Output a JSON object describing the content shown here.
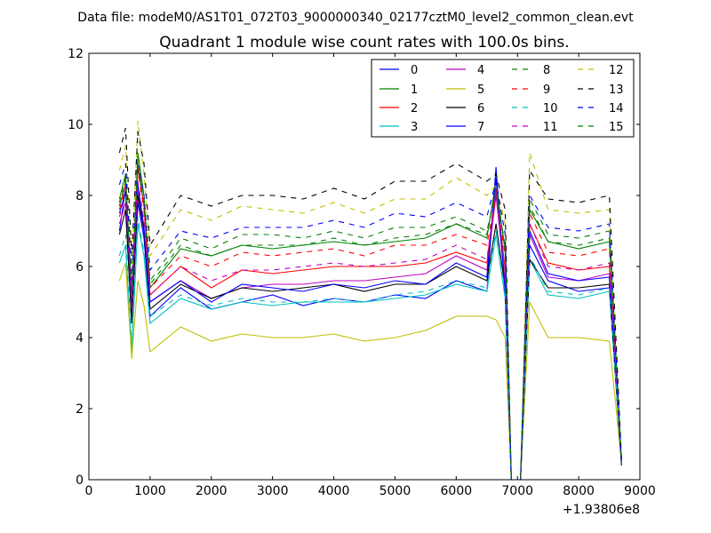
{
  "figure": {
    "suptitle": "Data file: modeM0/AS1T01_072T03_9000000340_02177cztM0_level2_common_clean.evt",
    "title": "Quadrant 1 module wise count rates with 100.0s bins.",
    "x_offset_label": "+1.93806e8"
  },
  "chart_data": {
    "type": "line",
    "title": "Quadrant 1 module wise count rates with 100.0s bins.",
    "xlabel": "",
    "ylabel": "",
    "x_offset": "+1.93806e8",
    "xlim": [
      0,
      9000
    ],
    "ylim": [
      0,
      12
    ],
    "xticks": [
      "0",
      "1000",
      "2000",
      "3000",
      "4000",
      "5000",
      "6000",
      "7000",
      "8000",
      "9000"
    ],
    "yticks": [
      "0",
      "2",
      "4",
      "6",
      "8",
      "10",
      "12"
    ],
    "grid": false,
    "legend_position": "top-right",
    "x": [
      500,
      600,
      700,
      800,
      900,
      1000,
      1500,
      2000,
      2500,
      3000,
      3500,
      4000,
      4500,
      5000,
      5500,
      6000,
      6500,
      6650,
      6800,
      6900,
      7050,
      7200,
      7500,
      8000,
      8500,
      8700
    ],
    "series": [
      {
        "name": "0",
        "color": "#0000ff",
        "style": "solid",
        "values": [
          7.0,
          8.2,
          4.6,
          7.8,
          6.8,
          4.6,
          5.4,
          4.8,
          5.0,
          5.2,
          4.9,
          5.1,
          5.0,
          5.2,
          5.1,
          5.6,
          5.3,
          8.8,
          5.2,
          0.0,
          0.0,
          6.6,
          5.6,
          5.3,
          5.4,
          0.5
        ]
      },
      {
        "name": "1",
        "color": "#008000",
        "style": "solid",
        "values": [
          7.9,
          8.6,
          5.2,
          9.2,
          8.0,
          5.4,
          6.5,
          6.3,
          6.6,
          6.5,
          6.6,
          6.7,
          6.6,
          6.7,
          6.8,
          7.2,
          6.8,
          8.4,
          6.4,
          0.0,
          0.0,
          7.6,
          6.7,
          6.5,
          6.7,
          0.5
        ]
      },
      {
        "name": "2",
        "color": "#ff0000",
        "style": "solid",
        "values": [
          7.7,
          8.3,
          5.0,
          8.8,
          7.7,
          5.2,
          6.0,
          5.4,
          5.9,
          5.8,
          5.9,
          6.0,
          6.0,
          6.0,
          6.1,
          6.4,
          6.1,
          8.2,
          5.9,
          0.0,
          0.0,
          7.2,
          6.1,
          5.9,
          6.0,
          0.5
        ]
      },
      {
        "name": "3",
        "color": "#00bfbf",
        "style": "solid",
        "values": [
          6.1,
          6.6,
          3.6,
          7.2,
          6.3,
          4.4,
          5.1,
          4.8,
          5.0,
          4.9,
          5.0,
          5.0,
          5.0,
          5.1,
          5.2,
          5.5,
          5.3,
          6.9,
          5.1,
          0.0,
          0.0,
          6.2,
          5.2,
          5.1,
          5.3,
          0.5
        ]
      },
      {
        "name": "4",
        "color": "#bf00bf",
        "style": "solid",
        "values": [
          7.2,
          7.8,
          4.8,
          8.1,
          7.0,
          5.0,
          5.6,
          5.1,
          5.4,
          5.5,
          5.5,
          5.6,
          5.6,
          5.7,
          5.8,
          6.3,
          5.9,
          8.0,
          5.6,
          0.0,
          0.0,
          6.9,
          5.7,
          5.6,
          5.8,
          0.5
        ]
      },
      {
        "name": "5",
        "color": "#bfbf00",
        "style": "solid",
        "values": [
          5.6,
          6.1,
          3.4,
          5.6,
          4.9,
          3.6,
          4.3,
          3.9,
          4.1,
          4.0,
          4.0,
          4.1,
          3.9,
          4.0,
          4.2,
          4.6,
          4.6,
          4.5,
          4.0,
          0.0,
          0.0,
          5.0,
          4.0,
          4.0,
          3.9,
          0.5
        ]
      },
      {
        "name": "6",
        "color": "#000000",
        "style": "solid",
        "values": [
          6.9,
          7.6,
          4.4,
          8.0,
          7.0,
          4.8,
          5.5,
          5.1,
          5.4,
          5.3,
          5.4,
          5.5,
          5.3,
          5.5,
          5.5,
          6.0,
          5.6,
          7.2,
          5.4,
          0.0,
          0.0,
          6.2,
          5.4,
          5.4,
          5.5,
          0.4
        ]
      },
      {
        "name": "7",
        "color": "#0000ff",
        "style": "solid",
        "values": [
          7.5,
          8.1,
          4.9,
          8.3,
          7.1,
          5.0,
          5.6,
          5.0,
          5.5,
          5.4,
          5.3,
          5.5,
          5.4,
          5.6,
          5.5,
          6.1,
          5.7,
          8.5,
          5.3,
          0.0,
          0.0,
          7.0,
          5.8,
          5.6,
          5.7,
          0.5
        ]
      },
      {
        "name": "8",
        "color": "#008000",
        "style": "dashed",
        "values": [
          7.8,
          8.5,
          5.3,
          9.0,
          7.8,
          5.6,
          6.8,
          6.5,
          6.9,
          6.9,
          6.8,
          7.0,
          6.8,
          7.1,
          7.1,
          7.4,
          7.0,
          8.1,
          6.6,
          0.0,
          0.0,
          7.9,
          6.9,
          6.8,
          7.0,
          0.5
        ]
      },
      {
        "name": "9",
        "color": "#ff0000",
        "style": "dashed",
        "values": [
          7.6,
          8.2,
          5.1,
          8.7,
          7.6,
          5.4,
          6.3,
          6.0,
          6.4,
          6.3,
          6.4,
          6.5,
          6.3,
          6.6,
          6.6,
          6.9,
          6.6,
          8.0,
          6.3,
          0.0,
          0.0,
          7.5,
          6.4,
          6.3,
          6.5,
          0.5
        ]
      },
      {
        "name": "10",
        "color": "#00bfbf",
        "style": "dashed",
        "values": [
          6.3,
          6.9,
          3.8,
          7.4,
          6.4,
          4.6,
          5.2,
          4.9,
          5.1,
          5.0,
          5.0,
          5.1,
          5.0,
          5.2,
          5.3,
          5.6,
          5.4,
          7.0,
          5.2,
          0.0,
          0.0,
          6.3,
          5.3,
          5.2,
          5.4,
          0.5
        ]
      },
      {
        "name": "11",
        "color": "#bf00bf",
        "style": "dashed",
        "values": [
          7.4,
          8.0,
          4.9,
          8.4,
          7.3,
          5.2,
          6.0,
          5.6,
          5.9,
          5.9,
          6.0,
          6.1,
          6.0,
          6.1,
          6.2,
          6.6,
          6.2,
          8.1,
          5.9,
          0.0,
          0.0,
          7.2,
          6.0,
          5.9,
          6.1,
          0.5
        ]
      },
      {
        "name": "12",
        "color": "#bfbf00",
        "style": "dashed",
        "values": [
          8.7,
          9.4,
          6.0,
          10.1,
          8.6,
          6.3,
          7.6,
          7.3,
          7.7,
          7.6,
          7.5,
          7.8,
          7.5,
          7.9,
          7.9,
          8.5,
          8.0,
          8.3,
          7.2,
          0.0,
          0.0,
          9.2,
          7.6,
          7.5,
          7.6,
          0.6
        ]
      },
      {
        "name": "13",
        "color": "#000000",
        "style": "dashed",
        "values": [
          9.2,
          9.9,
          6.3,
          9.8,
          8.9,
          6.6,
          8.0,
          7.7,
          8.0,
          8.0,
          7.9,
          8.2,
          7.9,
          8.4,
          8.4,
          8.9,
          8.4,
          8.6,
          7.6,
          0.0,
          0.0,
          8.7,
          7.9,
          7.8,
          8.0,
          0.6
        ]
      },
      {
        "name": "14",
        "color": "#0000ff",
        "style": "dashed",
        "values": [
          8.3,
          8.9,
          5.6,
          8.9,
          8.0,
          5.9,
          7.0,
          6.8,
          7.1,
          7.1,
          7.1,
          7.3,
          7.1,
          7.5,
          7.4,
          7.8,
          7.4,
          8.4,
          6.9,
          0.0,
          0.0,
          8.0,
          7.1,
          7.0,
          7.2,
          0.5
        ]
      },
      {
        "name": "15",
        "color": "#008000",
        "style": "dashed",
        "values": [
          7.7,
          8.4,
          5.2,
          8.9,
          7.7,
          5.5,
          6.6,
          6.3,
          6.6,
          6.6,
          6.6,
          6.8,
          6.6,
          6.8,
          6.9,
          7.2,
          6.9,
          8.2,
          6.5,
          0.0,
          0.0,
          7.7,
          6.7,
          6.6,
          6.8,
          0.5
        ]
      }
    ]
  }
}
